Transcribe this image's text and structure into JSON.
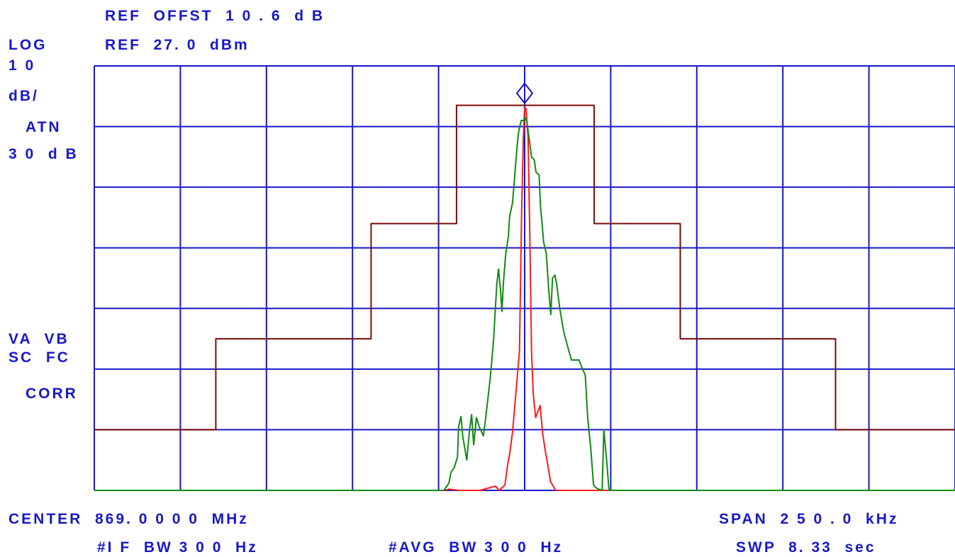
{
  "header": {
    "ref_offset": "REF  OFFST  1 0 . 6  d B",
    "ref_level": "REF  27. 0  dBm"
  },
  "left_panel": {
    "scale_mode": "LOG",
    "scale_value": "1 0",
    "scale_unit": "dB/",
    "atten_label": "ATN",
    "atten_value": "3 0  d B",
    "trace_modes": "VA  VB",
    "trace_modes_2": "SC  FC",
    "correction": "CORR"
  },
  "footer": {
    "center": "CENTER  869. 0 0 0 0  MHz",
    "span": "SPAN  2 5 0 . 0  kHz",
    "if_bw": "#I F  BW 3 0 0  Hz",
    "avg_bw": "#AVG  BW 3 0 0  Hz",
    "sweep": "SWP  8. 33  sec"
  },
  "colors": {
    "grid": "#1818c8",
    "mask": "#7a0a0a",
    "trace_max": "#ff1a1a",
    "trace_avg": "#128a12",
    "marker": "#1818c8"
  },
  "chart_data": {
    "type": "line",
    "x_unit": "kHz offset from center",
    "y_unit": "dB below reference",
    "xlim": [
      -125,
      125
    ],
    "ylim": [
      -70,
      0
    ],
    "grid_divisions": {
      "x": 10,
      "y": 7
    },
    "marker": {
      "x": 0,
      "y": -6.5
    },
    "series": [
      {
        "key": "mask",
        "points": [
          [
            -125,
            -60
          ],
          [
            -89.7,
            -60
          ],
          [
            -89.7,
            -45
          ],
          [
            -44.6,
            -45
          ],
          [
            -44.6,
            -26
          ],
          [
            -19.8,
            -26
          ],
          [
            -19.8,
            -6.5
          ],
          [
            20.2,
            -6.5
          ],
          [
            20.2,
            -26
          ],
          [
            45.2,
            -26
          ],
          [
            45.2,
            -45
          ],
          [
            90.3,
            -45
          ],
          [
            90.3,
            -60
          ],
          [
            125,
            -60
          ]
        ]
      },
      {
        "key": "trace_max",
        "points": [
          [
            -125,
            -70
          ],
          [
            -23.3,
            -70
          ],
          [
            -22,
            -69.8
          ],
          [
            -19,
            -70
          ],
          [
            -13,
            -70
          ],
          [
            -8.5,
            -69.3
          ],
          [
            -7.4,
            -70
          ],
          [
            -5.7,
            -69.1
          ],
          [
            -5,
            -66
          ],
          [
            -4.3,
            -63.8
          ],
          [
            -3.5,
            -60.3
          ],
          [
            -3,
            -57
          ],
          [
            -1.5,
            -47
          ],
          [
            -0.9,
            -25
          ],
          [
            -0.4,
            -12
          ],
          [
            0,
            -7
          ],
          [
            0.4,
            -7
          ],
          [
            1,
            -12
          ],
          [
            1.5,
            -28
          ],
          [
            2,
            -47
          ],
          [
            2.5,
            -54
          ],
          [
            3.2,
            -58
          ],
          [
            4.5,
            -56
          ],
          [
            5.2,
            -60.5
          ],
          [
            6,
            -63.5
          ],
          [
            6.8,
            -66
          ],
          [
            7.5,
            -68.5
          ],
          [
            9,
            -70
          ],
          [
            125,
            -70
          ]
        ]
      },
      {
        "key": "trace_avg",
        "points": [
          [
            -125,
            -70
          ],
          [
            -23.5,
            -70
          ],
          [
            -22,
            -68.8
          ],
          [
            -21.4,
            -67
          ],
          [
            -20.5,
            -66.3
          ],
          [
            -19.5,
            -64.5
          ],
          [
            -19.2,
            -59.5
          ],
          [
            -18.5,
            -57.8
          ],
          [
            -18,
            -61
          ],
          [
            -16.8,
            -65
          ],
          [
            -16,
            -60
          ],
          [
            -15.4,
            -57.5
          ],
          [
            -14.8,
            -62.5
          ],
          [
            -14,
            -58
          ],
          [
            -13.2,
            -59.5
          ],
          [
            -12,
            -61
          ],
          [
            -11.4,
            -58.5
          ],
          [
            -10.4,
            -53.5
          ],
          [
            -10,
            -51.5
          ],
          [
            -9.6,
            -49
          ],
          [
            -9,
            -45
          ],
          [
            -8.6,
            -41
          ],
          [
            -8.1,
            -36
          ],
          [
            -7.6,
            -33.5
          ],
          [
            -7,
            -37
          ],
          [
            -6.6,
            -40.5
          ],
          [
            -6.2,
            -36
          ],
          [
            -5.5,
            -31
          ],
          [
            -4.7,
            -28
          ],
          [
            -4.4,
            -25
          ],
          [
            -3.5,
            -22.5
          ],
          [
            -3,
            -19
          ],
          [
            -2.3,
            -14
          ],
          [
            -1.8,
            -11
          ],
          [
            -1,
            -9
          ],
          [
            -0.3,
            -9
          ],
          [
            0.1,
            -8.5
          ],
          [
            0.6,
            -9
          ],
          [
            1.2,
            -11.5
          ],
          [
            2,
            -15
          ],
          [
            2.8,
            -15.5
          ],
          [
            3.3,
            -17.5
          ],
          [
            4.2,
            -18
          ],
          [
            4.6,
            -23
          ],
          [
            5.2,
            -27
          ],
          [
            5.5,
            -29
          ],
          [
            6.3,
            -31
          ],
          [
            7,
            -37
          ],
          [
            7.6,
            -41
          ],
          [
            8.1,
            -35
          ],
          [
            8.8,
            -34.5
          ],
          [
            9.3,
            -36
          ],
          [
            10.2,
            -40
          ],
          [
            11.4,
            -44
          ],
          [
            12.6,
            -46.5
          ],
          [
            13.6,
            -48.5
          ],
          [
            15.8,
            -48.5
          ],
          [
            16.6,
            -49.7
          ],
          [
            17.6,
            -51
          ],
          [
            18.3,
            -58
          ],
          [
            19.2,
            -63
          ],
          [
            20,
            -69
          ],
          [
            20.5,
            -69.5
          ],
          [
            21.5,
            -69.8
          ],
          [
            22.5,
            -70
          ],
          [
            23,
            -60
          ],
          [
            23.8,
            -65
          ],
          [
            24.5,
            -70
          ],
          [
            125,
            -70
          ]
        ]
      }
    ]
  }
}
